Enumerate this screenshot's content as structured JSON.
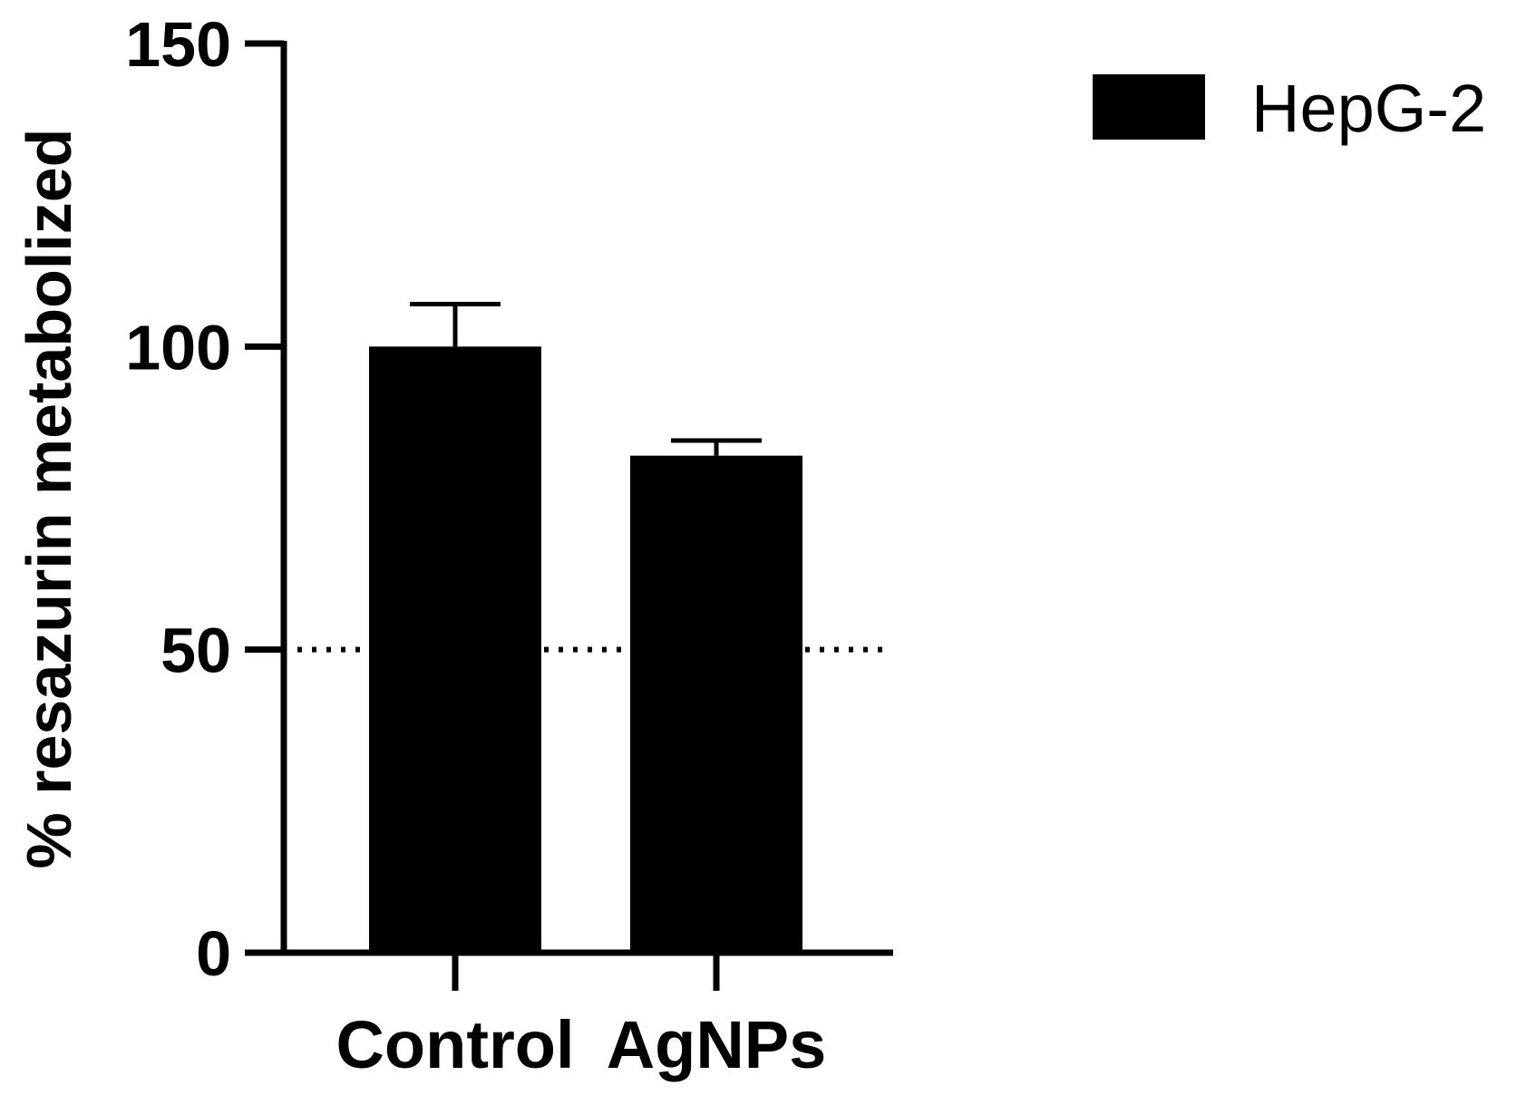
{
  "chart_data": {
    "type": "bar",
    "categories": [
      "Control",
      "AgNPs"
    ],
    "series": [
      {
        "name": "HepG-2",
        "values": [
          100,
          82
        ],
        "errors": [
          7,
          2.5
        ],
        "color": "#000000"
      }
    ],
    "xlabel": "",
    "ylabel": "% resazurin metabolized",
    "ylim": [
      0,
      150
    ],
    "yticks": [
      0,
      50,
      100,
      150
    ],
    "reference_line": {
      "y": 50,
      "style": "dotted"
    },
    "grid": false,
    "legend_position": "top-right"
  }
}
